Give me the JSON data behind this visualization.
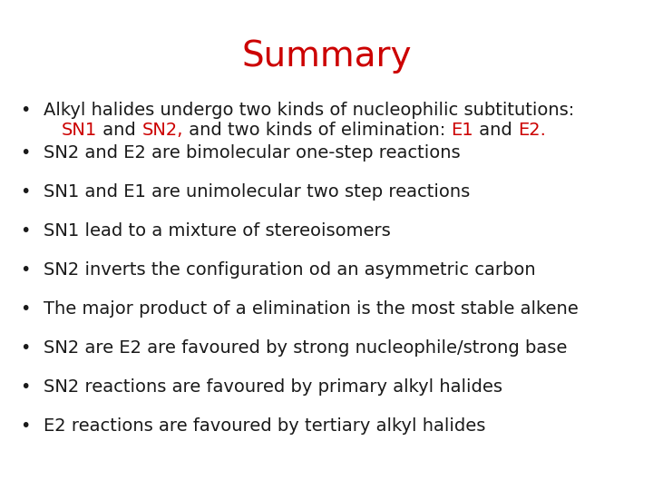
{
  "title": "Summary",
  "title_color": "#CC0000",
  "title_fontsize": 28,
  "background_color": "#ffffff",
  "bullet_color": "#1a1a1a",
  "red_color": "#CC0000",
  "bullet_fontsize": 14,
  "line1_bullet0": "Alkyl halides undergo two kinds of nucleophilic subtitutions:",
  "line2_bullet0_segments": [
    {
      "text": "SN1",
      "color": "#CC0000"
    },
    {
      "text": " and ",
      "color": "#1a1a1a"
    },
    {
      "text": "SN2,",
      "color": "#CC0000"
    },
    {
      "text": " and two kinds of elimination: ",
      "color": "#1a1a1a"
    },
    {
      "text": "E1",
      "color": "#CC0000"
    },
    {
      "text": " and ",
      "color": "#1a1a1a"
    },
    {
      "text": "E2.",
      "color": "#CC0000"
    }
  ],
  "simple_bullets": [
    "SN2 and E2 are bimolecular one-step reactions",
    "SN1 and E1 are unimolecular two step reactions",
    "SN1 lead to a mixture of stereoisomers",
    "SN2 inverts the configuration od an asymmetric carbon",
    "The major product of a elimination is the most stable alkene",
    "SN2 are E2 are favoured by strong nucleophile/strong base",
    "SN2 reactions are favoured by primary alkyl halides",
    "E2 reactions are favoured by tertiary alkyl halides"
  ]
}
